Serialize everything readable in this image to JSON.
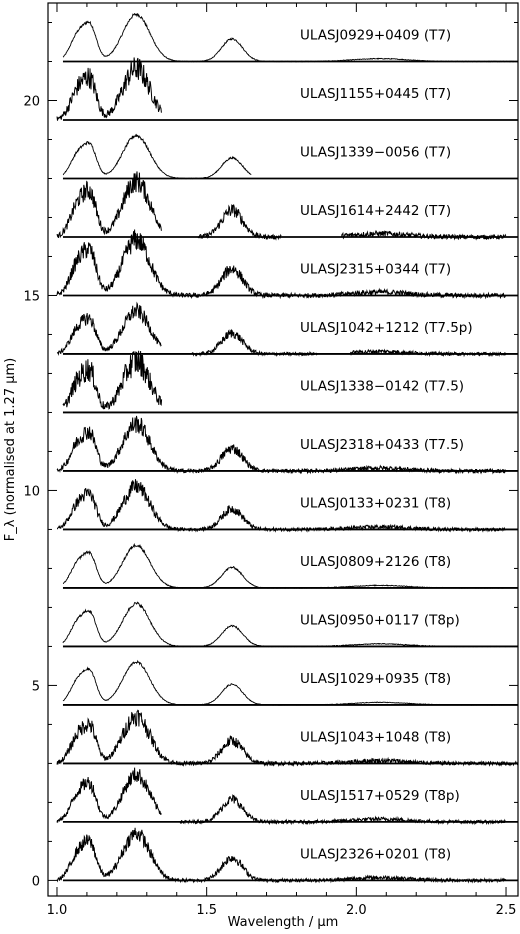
{
  "chart_data": {
    "type": "line",
    "xlabel": "Wavelength / μm",
    "ylabel": "F_λ (normalised at 1.27 μm)",
    "xlim": [
      0.97,
      2.54
    ],
    "ylim": [
      -0.4,
      22.5
    ],
    "x_ticks": [
      1.0,
      1.5,
      2.0,
      2.5
    ],
    "x_tick_labels": [
      "1.0",
      "1.5",
      "2.0",
      "2.5"
    ],
    "y_ticks": [
      0,
      5,
      10,
      15,
      20
    ],
    "y_tick_labels": [
      "0",
      "5",
      "10",
      "15",
      "20"
    ],
    "series": [
      {
        "name": "ULASJ0929+0409 (T7)",
        "offset": 21.0,
        "x_range": [
          1.02,
          2.54
        ],
        "peak": 1.1,
        "noise": 0.05,
        "gaps": [],
        "ripple": 0.0
      },
      {
        "name": "ULASJ1155+0445 (T7)",
        "offset": 19.5,
        "x_range": [
          1.0,
          1.35
        ],
        "peak": 1.2,
        "noise": 0.4,
        "gaps": [],
        "ripple": 0.0
      },
      {
        "name": "ULASJ1339−0056 (T7)",
        "offset": 18.0,
        "x_range": [
          1.02,
          1.65
        ],
        "peak": 1.0,
        "noise": 0.05,
        "gaps": [],
        "ripple": 0.0
      },
      {
        "name": "ULASJ1614+2442 (T7)",
        "offset": 16.5,
        "x_range": [
          1.0,
          2.5
        ],
        "peak": 1.3,
        "noise": 0.35,
        "gaps": [
          [
            1.35,
            1.47
          ],
          [
            1.75,
            1.95
          ]
        ],
        "ripple": 0.0
      },
      {
        "name": "ULASJ2315+0344 (T7)",
        "offset": 15.0,
        "x_range": [
          1.0,
          2.5
        ],
        "peak": 1.3,
        "noise": 0.35,
        "gaps": [],
        "ripple": 0.0
      },
      {
        "name": "ULASJ1042+1212 (T7.5p)",
        "offset": 13.5,
        "x_range": [
          1.0,
          2.5
        ],
        "peak": 1.0,
        "noise": 0.25,
        "gaps": [
          [
            1.35,
            1.45
          ],
          [
            1.87,
            1.98
          ]
        ],
        "ripple": 0.0
      },
      {
        "name": "ULASJ1338−0142 (T7.5)",
        "offset": 12.0,
        "x_range": [
          1.02,
          1.35
        ],
        "peak": 1.2,
        "noise": 0.45,
        "gaps": [],
        "ripple": 0.0
      },
      {
        "name": "ULASJ2318+0433 (T7.5)",
        "offset": 10.5,
        "x_range": [
          1.0,
          2.5
        ],
        "peak": 1.1,
        "noise": 0.3,
        "gaps": [],
        "ripple": 0.0
      },
      {
        "name": "ULASJ0133+0231 (T8)",
        "offset": 9.0,
        "x_range": [
          1.0,
          2.5
        ],
        "peak": 1.0,
        "noise": 0.25,
        "gaps": [],
        "ripple": 0.0
      },
      {
        "name": "ULASJ0809+2126 (T8)",
        "offset": 7.5,
        "x_range": [
          1.02,
          2.5
        ],
        "peak": 1.0,
        "noise": 0.05,
        "gaps": [],
        "ripple": 0.0
      },
      {
        "name": "ULASJ0950+0117 (T8p)",
        "offset": 6.0,
        "x_range": [
          1.02,
          2.54
        ],
        "peak": 1.0,
        "noise": 0.05,
        "gaps": [],
        "ripple": 0.0
      },
      {
        "name": "ULASJ1029+0935 (T8)",
        "offset": 4.5,
        "x_range": [
          1.02,
          2.54
        ],
        "peak": 1.0,
        "noise": 0.04,
        "gaps": [],
        "ripple": 0.0
      },
      {
        "name": "ULASJ1043+1048 (T8)",
        "offset": 3.0,
        "x_range": [
          1.0,
          2.54
        ],
        "peak": 1.1,
        "noise": 0.3,
        "gaps": [],
        "ripple": 0.0
      },
      {
        "name": "ULASJ1517+0529 (T8p)",
        "offset": 1.5,
        "x_range": [
          1.0,
          2.5
        ],
        "peak": 1.1,
        "noise": 0.25,
        "gaps": [
          [
            1.35,
            1.41
          ]
        ],
        "ripple": 0.0
      },
      {
        "name": "ULASJ2326+0201 (T8)",
        "offset": 0.0,
        "x_range": [
          1.0,
          2.5
        ],
        "peak": 1.1,
        "noise": 0.25,
        "gaps": [],
        "ripple": 0.0
      }
    ]
  }
}
